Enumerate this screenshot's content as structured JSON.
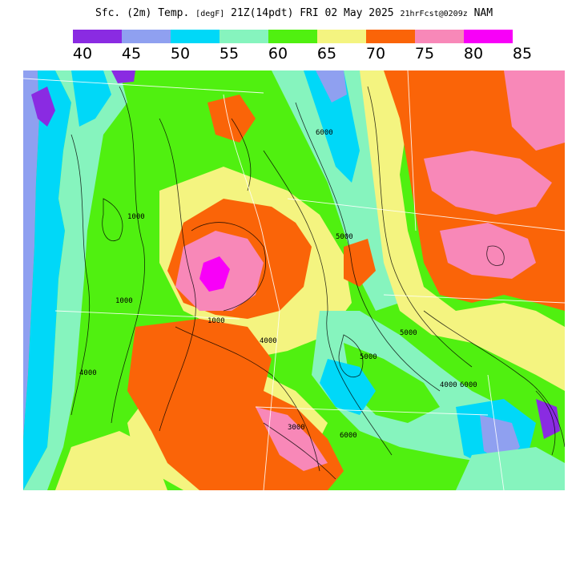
{
  "title": {
    "main": "Sfc. (2m) Temp.",
    "units": "[degF]",
    "valid": "21Z(14pdt) FRI 02 May 2025",
    "forecast": "21hrFcst@0209z",
    "model": "NAM"
  },
  "legend": {
    "colors": [
      "#8a2be2",
      "#8fa0f0",
      "#00d8f8",
      "#86f4be",
      "#50f010",
      "#f4f480",
      "#fa6408",
      "#f888b8",
      "#f800f8"
    ],
    "ticks": [
      "40",
      "45",
      "50",
      "55",
      "60",
      "65",
      "70",
      "75",
      "80",
      "85"
    ]
  },
  "map": {
    "contour_labels": [
      "6000",
      "5000",
      "4000",
      "4000",
      "1000",
      "1000",
      "5000",
      "4000",
      "6000",
      "5000",
      "1000",
      "6000",
      "3000"
    ]
  }
}
